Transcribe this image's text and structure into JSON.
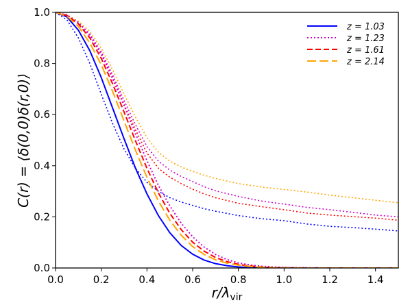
{
  "chart_data": {
    "type": "line",
    "title": "",
    "xlabel": "r/λ",
    "xlabel_sub": "vir",
    "ylabel": "C(r) = ⟨δ(0,0)δ(r,0)⟩",
    "xlim": [
      0.0,
      1.5
    ],
    "ylim": [
      0.0,
      1.0
    ],
    "xticks": [
      "0.0",
      "0.2",
      "0.4",
      "0.6",
      "0.8",
      "1.0",
      "1.2",
      "1.4"
    ],
    "yticks": [
      "0.0",
      "0.2",
      "0.4",
      "0.6",
      "0.8",
      "1.0"
    ],
    "grid": false,
    "legend_position": "top-right",
    "series": [
      {
        "name": "z = 1.03",
        "color": "#0000ff",
        "dash": "solid",
        "x": [
          0,
          0.05,
          0.1,
          0.15,
          0.2,
          0.25,
          0.3,
          0.35,
          0.4,
          0.45,
          0.5,
          0.55,
          0.6,
          0.65,
          0.7,
          0.75,
          0.8,
          0.85,
          0.9,
          0.95,
          1.0,
          1.1,
          1.2,
          1.3,
          1.4,
          1.5
        ],
        "y": [
          1.0,
          0.982,
          0.93,
          0.85,
          0.745,
          0.625,
          0.505,
          0.39,
          0.29,
          0.205,
          0.138,
          0.088,
          0.054,
          0.031,
          0.017,
          0.009,
          0.004,
          0.002,
          0.001,
          0.0,
          0.0,
          0.0,
          0.0,
          0.0,
          0.0,
          0.0
        ]
      },
      {
        "name": "z = 1.23",
        "color": "#cc00cc",
        "dash": "dotted",
        "x": [
          0,
          0.05,
          0.1,
          0.15,
          0.2,
          0.25,
          0.3,
          0.35,
          0.4,
          0.45,
          0.5,
          0.55,
          0.6,
          0.65,
          0.7,
          0.75,
          0.8,
          0.85,
          0.9,
          0.95,
          1.0,
          1.1,
          1.2,
          1.3,
          1.4,
          1.5
        ],
        "y": [
          1.0,
          0.99,
          0.96,
          0.91,
          0.835,
          0.74,
          0.635,
          0.525,
          0.42,
          0.323,
          0.243,
          0.175,
          0.122,
          0.082,
          0.053,
          0.033,
          0.02,
          0.012,
          0.007,
          0.004,
          0.002,
          0.001,
          0.0,
          0.0,
          0.0,
          0.0
        ]
      },
      {
        "name": "z = 1.61",
        "color": "#ff0000",
        "dash": "dashed",
        "x": [
          0,
          0.05,
          0.1,
          0.15,
          0.2,
          0.25,
          0.3,
          0.35,
          0.4,
          0.45,
          0.5,
          0.55,
          0.6,
          0.65,
          0.7,
          0.75,
          0.8,
          0.85,
          0.9,
          0.95,
          1.0,
          1.1,
          1.2,
          1.3,
          1.4,
          1.5
        ],
        "y": [
          1.0,
          0.988,
          0.955,
          0.9,
          0.82,
          0.72,
          0.61,
          0.497,
          0.39,
          0.294,
          0.214,
          0.15,
          0.101,
          0.066,
          0.041,
          0.025,
          0.014,
          0.008,
          0.004,
          0.002,
          0.001,
          0.0,
          0.0,
          0.0,
          0.0,
          0.0
        ]
      },
      {
        "name": "z = 2.14",
        "color": "#ffa500",
        "dash": "longdash",
        "x": [
          0,
          0.05,
          0.1,
          0.15,
          0.2,
          0.25,
          0.3,
          0.35,
          0.4,
          0.45,
          0.5,
          0.55,
          0.6,
          0.65,
          0.7,
          0.75,
          0.8,
          0.85,
          0.9,
          0.95,
          1.0,
          1.1,
          1.2,
          1.3,
          1.4,
          1.5
        ],
        "y": [
          1.0,
          0.985,
          0.945,
          0.88,
          0.795,
          0.69,
          0.575,
          0.46,
          0.355,
          0.262,
          0.187,
          0.128,
          0.084,
          0.053,
          0.032,
          0.019,
          0.011,
          0.006,
          0.003,
          0.001,
          0.0,
          0.0,
          0.0,
          0.0,
          0.0,
          0.0
        ]
      }
    ],
    "unlabeled_series": [
      {
        "color": "#0000ff",
        "dash": "dotted",
        "x": [
          0,
          0.05,
          0.1,
          0.15,
          0.2,
          0.25,
          0.3,
          0.35,
          0.4,
          0.45,
          0.5,
          0.55,
          0.6,
          0.65,
          0.7,
          0.8,
          0.9,
          1.0,
          1.1,
          1.2,
          1.3,
          1.4,
          1.5
        ],
        "y": [
          1.0,
          0.97,
          0.9,
          0.8,
          0.68,
          0.565,
          0.465,
          0.39,
          0.335,
          0.3,
          0.275,
          0.258,
          0.245,
          0.232,
          0.222,
          0.205,
          0.193,
          0.185,
          0.172,
          0.163,
          0.158,
          0.152,
          0.145
        ]
      },
      {
        "color": "#ff0000",
        "dash": "dotted",
        "x": [
          0,
          0.05,
          0.1,
          0.15,
          0.2,
          0.25,
          0.3,
          0.35,
          0.4,
          0.45,
          0.5,
          0.55,
          0.6,
          0.65,
          0.7,
          0.8,
          0.9,
          1.0,
          1.1,
          1.2,
          1.3,
          1.4,
          1.5
        ],
        "y": [
          1.0,
          0.99,
          0.96,
          0.91,
          0.84,
          0.745,
          0.64,
          0.54,
          0.45,
          0.39,
          0.355,
          0.33,
          0.308,
          0.29,
          0.275,
          0.253,
          0.24,
          0.228,
          0.215,
          0.207,
          0.201,
          0.195,
          0.187
        ]
      },
      {
        "color": "#cc00cc",
        "dash": "dotted",
        "x": [
          0,
          0.05,
          0.1,
          0.15,
          0.2,
          0.25,
          0.3,
          0.35,
          0.4,
          0.45,
          0.5,
          0.55,
          0.6,
          0.65,
          0.7,
          0.8,
          0.9,
          1.0,
          1.1,
          1.2,
          1.3,
          1.4,
          1.5
        ],
        "y": [
          1.0,
          0.99,
          0.96,
          0.915,
          0.845,
          0.755,
          0.655,
          0.56,
          0.475,
          0.418,
          0.383,
          0.358,
          0.338,
          0.318,
          0.302,
          0.28,
          0.262,
          0.25,
          0.237,
          0.228,
          0.218,
          0.207,
          0.2
        ]
      },
      {
        "color": "#ffa500",
        "dash": "dotted",
        "x": [
          0,
          0.05,
          0.1,
          0.15,
          0.2,
          0.25,
          0.3,
          0.35,
          0.4,
          0.45,
          0.5,
          0.55,
          0.6,
          0.65,
          0.7,
          0.8,
          0.9,
          1.0,
          1.1,
          1.2,
          1.3,
          1.4,
          1.5
        ],
        "y": [
          1.0,
          0.99,
          0.965,
          0.925,
          0.86,
          0.775,
          0.68,
          0.59,
          0.51,
          0.452,
          0.418,
          0.395,
          0.378,
          0.363,
          0.35,
          0.33,
          0.317,
          0.307,
          0.297,
          0.285,
          0.275,
          0.265,
          0.255
        ]
      }
    ]
  }
}
